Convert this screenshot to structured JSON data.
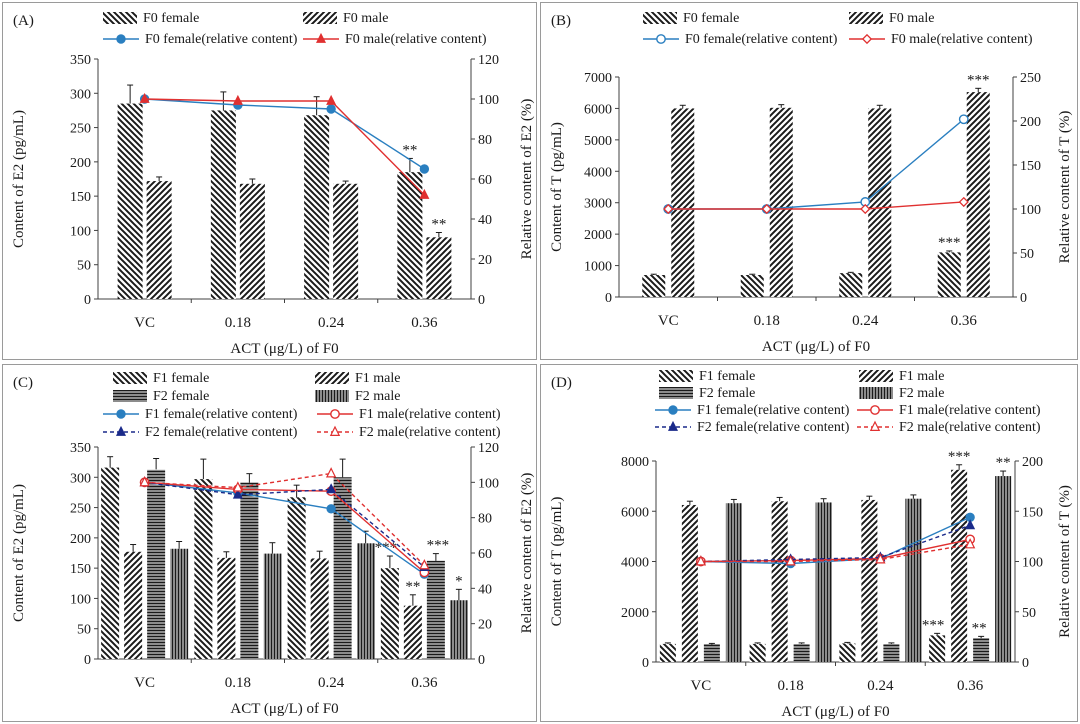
{
  "colors": {
    "female_line": "#2a7fc0",
    "male_line": "#e03030",
    "axis": "#404040",
    "bar_edge": "#222222"
  },
  "chart_data": [
    {
      "panel_label": "(A)",
      "type": "bar",
      "categories": [
        "VC",
        "0.18",
        "0.24",
        "0.36"
      ],
      "xlabel": "ACT (μg/L) of F0",
      "ylabel": "Content of E2 (pg/mL)",
      "y2label": "Relative content of E2 (%)",
      "ylim": [
        0,
        350
      ],
      "yticks": [
        0,
        50,
        100,
        150,
        200,
        250,
        300,
        350
      ],
      "y2lim": [
        0,
        120
      ],
      "y2ticks": [
        0,
        20,
        40,
        60,
        80,
        100,
        120
      ],
      "bar_series": [
        {
          "name": "F0 female",
          "pattern": "diag-back",
          "values": [
            285,
            275,
            268,
            185
          ],
          "errors": [
            27,
            27,
            27,
            20
          ],
          "stars": [
            "",
            "",
            "",
            "**"
          ]
        },
        {
          "name": "F0 male",
          "pattern": "diag-fwd",
          "values": [
            172,
            168,
            168,
            90
          ],
          "errors": [
            6,
            7,
            4,
            7
          ],
          "stars": [
            "",
            "",
            "",
            "**"
          ]
        }
      ],
      "line_series": [
        {
          "name": "F0 female(relative content)",
          "color": "#2a7fc0",
          "marker": "circle-filled",
          "dash": false,
          "values": [
            100,
            97,
            95,
            65
          ]
        },
        {
          "name": "F0 male(relative content)",
          "color": "#e03030",
          "marker": "triangle-filled",
          "dash": false,
          "values": [
            100,
            99,
            99,
            52
          ]
        }
      ]
    },
    {
      "panel_label": "(B)",
      "type": "bar",
      "categories": [
        "VC",
        "0.18",
        "0.24",
        "0.36"
      ],
      "xlabel": "ACT (μg/L) of F0",
      "ylabel": "Content of T (pg/mL)",
      "y2label": "Relative content of T (%)",
      "ylim": [
        0,
        7000
      ],
      "yticks": [
        0,
        1000,
        2000,
        3000,
        4000,
        5000,
        6000,
        7000
      ],
      "y2lim": [
        0,
        250
      ],
      "y2ticks": [
        0,
        50,
        100,
        150,
        200,
        250
      ],
      "bar_series": [
        {
          "name": "F0 female",
          "pattern": "diag-back",
          "values": [
            700,
            700,
            760,
            1420
          ],
          "errors": [
            25,
            25,
            25,
            45
          ],
          "stars": [
            "",
            "",
            "",
            "***"
          ]
        },
        {
          "name": "F0 male",
          "pattern": "diag-fwd",
          "values": [
            6000,
            6020,
            6000,
            6520
          ],
          "errors": [
            100,
            100,
            100,
            120
          ],
          "stars": [
            "",
            "",
            "",
            "***"
          ]
        }
      ],
      "line_series": [
        {
          "name": "F0 female(relative content)",
          "color": "#2a7fc0",
          "marker": "circle-open",
          "dash": false,
          "values": [
            100,
            100,
            108,
            202
          ]
        },
        {
          "name": "F0 male(relative content)",
          "color": "#e03030",
          "marker": "diamond-open",
          "dash": false,
          "values": [
            100,
            100,
            100,
            108
          ]
        }
      ]
    },
    {
      "panel_label": "(C)",
      "type": "bar",
      "categories": [
        "VC",
        "0.18",
        "0.24",
        "0.36"
      ],
      "xlabel": "ACT (μg/L) of F0",
      "ylabel": "Content of E2 (pg/mL)",
      "y2label": "Relative content of E2 (%)",
      "ylim": [
        0,
        350
      ],
      "yticks": [
        0,
        50,
        100,
        150,
        200,
        250,
        300,
        350
      ],
      "y2lim": [
        0,
        120
      ],
      "y2ticks": [
        0,
        20,
        40,
        60,
        80,
        100,
        120
      ],
      "bar_series": [
        {
          "name": "F1 female",
          "pattern": "diag-back",
          "values": [
            316,
            297,
            267,
            150
          ],
          "errors": [
            18,
            33,
            20,
            20
          ],
          "stars": [
            "",
            "",
            "",
            "***"
          ]
        },
        {
          "name": "F1 male",
          "pattern": "diag-fwd",
          "values": [
            177,
            167,
            166,
            88
          ],
          "errors": [
            12,
            10,
            12,
            18
          ],
          "stars": [
            "",
            "",
            "",
            "**"
          ]
        },
        {
          "name": "F2 female",
          "pattern": "horiz",
          "values": [
            313,
            291,
            300,
            162
          ],
          "errors": [
            18,
            15,
            30,
            12
          ],
          "stars": [
            "",
            "",
            "",
            "***"
          ]
        },
        {
          "name": "F2 male",
          "pattern": "vert",
          "values": [
            182,
            174,
            191,
            97
          ],
          "errors": [
            12,
            18,
            20,
            18
          ],
          "stars": [
            "",
            "",
            "",
            "*"
          ]
        }
      ],
      "line_series": [
        {
          "name": "F1 female(relative content)",
          "color": "#2a7fc0",
          "marker": "circle-filled",
          "dash": false,
          "values": [
            100,
            94,
            85,
            48
          ]
        },
        {
          "name": "F1 male(relative content)",
          "color": "#e03030",
          "marker": "circle-open",
          "dash": false,
          "values": [
            100,
            96,
            95,
            49
          ]
        },
        {
          "name": "F2 female(relative content)",
          "color": "#1a2a8a",
          "marker": "triangle-filled",
          "dash": true,
          "values": [
            100,
            93,
            96,
            52
          ]
        },
        {
          "name": "F2 male(relative content)",
          "color": "#e03030",
          "marker": "triangle-open",
          "dash": true,
          "values": [
            100,
            97,
            105,
            53
          ]
        }
      ]
    },
    {
      "panel_label": "(D)",
      "type": "bar",
      "categories": [
        "VC",
        "0.18",
        "0.24",
        "0.36"
      ],
      "xlabel": "ACT (μg/L) of F0",
      "ylabel": "Content of T (pg/mL)",
      "y2label": "Relative content of T (%)",
      "ylim": [
        0,
        8000
      ],
      "yticks": [
        0,
        2000,
        4000,
        6000,
        8000
      ],
      "y2lim": [
        0,
        200
      ],
      "y2ticks": [
        0,
        50,
        100,
        150,
        200
      ],
      "bar_series": [
        {
          "name": "F1 female",
          "pattern": "diag-back",
          "values": [
            720,
            720,
            740,
            1060
          ],
          "errors": [
            40,
            40,
            40,
            80
          ],
          "stars": [
            "",
            "",
            "",
            "***"
          ]
        },
        {
          "name": "F1 male",
          "pattern": "diag-fwd",
          "values": [
            6250,
            6400,
            6450,
            7650
          ],
          "errors": [
            150,
            150,
            150,
            200
          ],
          "stars": [
            "",
            "",
            "",
            "***"
          ]
        },
        {
          "name": "F2 female",
          "pattern": "horiz",
          "values": [
            700,
            720,
            720,
            950
          ],
          "errors": [
            40,
            40,
            40,
            70
          ],
          "stars": [
            "",
            "",
            "",
            "**"
          ]
        },
        {
          "name": "F2 male",
          "pattern": "vert",
          "values": [
            6320,
            6350,
            6500,
            7400
          ],
          "errors": [
            150,
            150,
            150,
            200
          ],
          "stars": [
            "",
            "",
            "",
            "**"
          ]
        }
      ],
      "line_series": [
        {
          "name": "F1 female(relative content)",
          "color": "#2a7fc0",
          "marker": "circle-filled",
          "dash": false,
          "values": [
            100,
            98,
            103,
            144
          ]
        },
        {
          "name": "F1 male(relative content)",
          "color": "#e03030",
          "marker": "circle-open",
          "dash": false,
          "values": [
            100,
            101,
            103,
            122
          ]
        },
        {
          "name": "F2 female(relative content)",
          "color": "#1a2a8a",
          "marker": "triangle-filled",
          "dash": true,
          "values": [
            100,
            102,
            104,
            136
          ]
        },
        {
          "name": "F2 male(relative content)",
          "color": "#e03030",
          "marker": "triangle-open",
          "dash": true,
          "values": [
            100,
            100,
            102,
            117
          ]
        }
      ]
    }
  ]
}
